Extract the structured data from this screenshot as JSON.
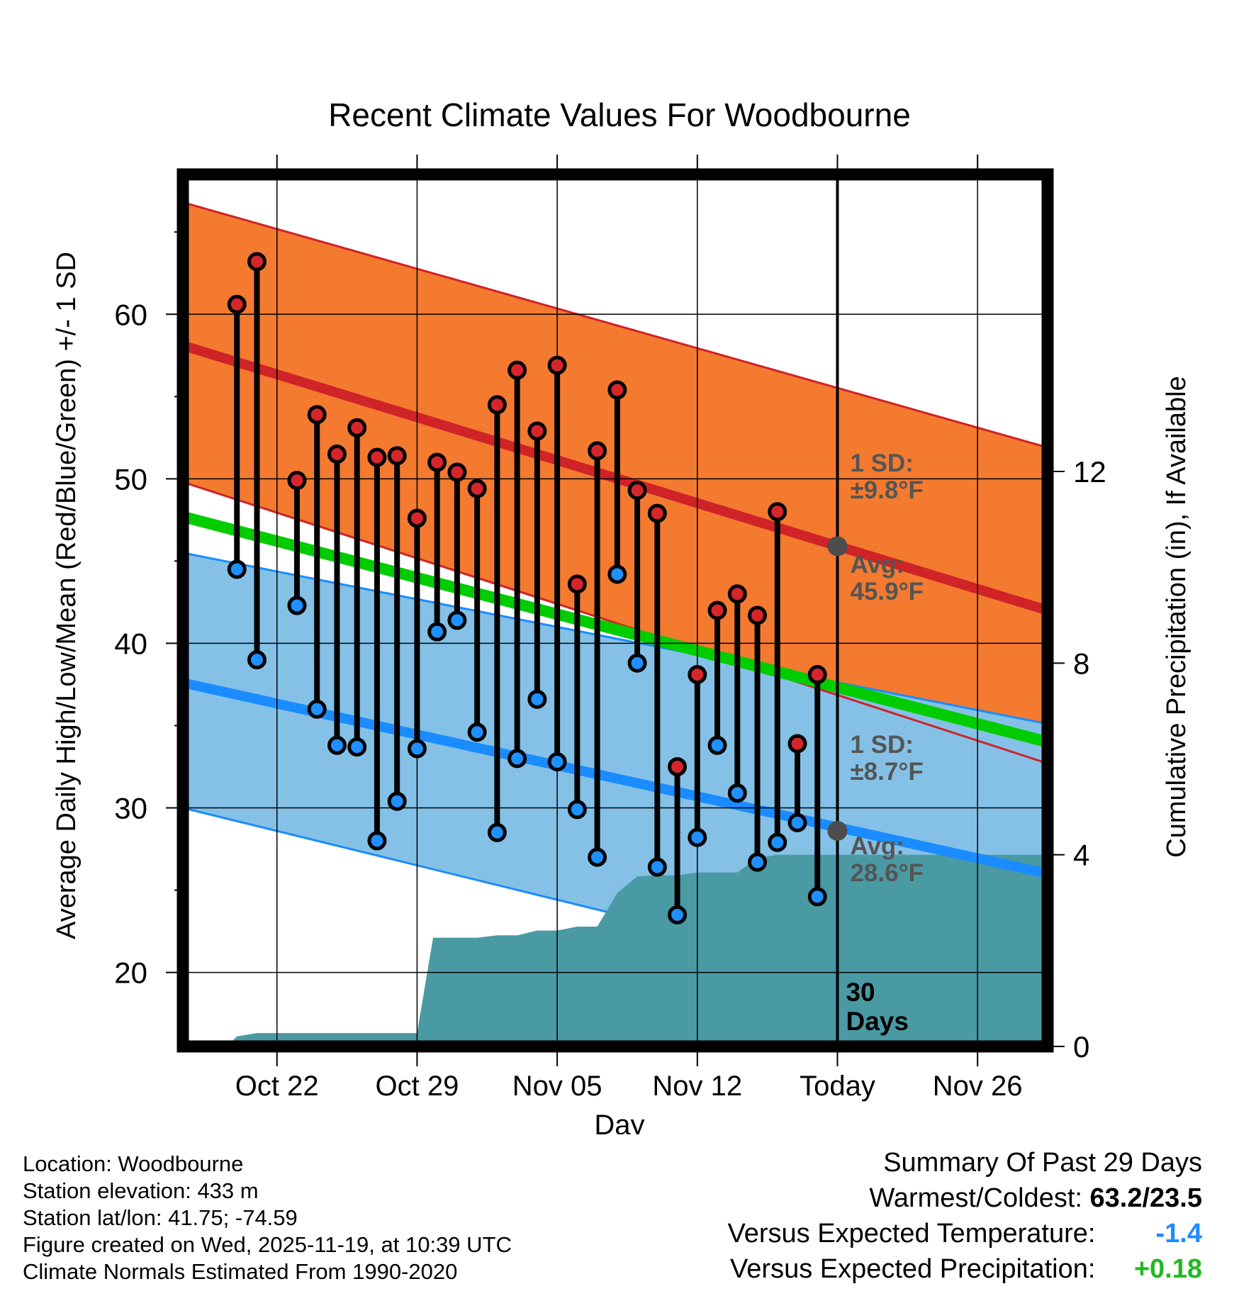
{
  "chart_data": {
    "type": "line",
    "title": "Recent Climate Values For Woodbourne",
    "xlabel": "Day",
    "ylabel": "Average Daily High/Low/Mean (Red/Blue/Green) +/- 1 SD",
    "y2label": "Cumulative Precipitation (in), If Available",
    "ylim": [
      15.5,
      68.5
    ],
    "y2lim": [
      0,
      18.2
    ],
    "yticks": [
      20,
      30,
      40,
      50,
      60
    ],
    "y2ticks": [
      0,
      4,
      8,
      12
    ],
    "x_range_days": [
      -32.7,
      10.5
    ],
    "xticks": [
      {
        "day": -28,
        "label": "Oct 22"
      },
      {
        "day": -21,
        "label": "Oct 29"
      },
      {
        "day": -14,
        "label": "Nov 05"
      },
      {
        "day": -7,
        "label": "Nov 12"
      },
      {
        "day": 0,
        "label": "Today"
      },
      {
        "day": 7,
        "label": "Nov 26"
      }
    ],
    "normals": {
      "high_avg": {
        "start": 58.1,
        "end": 42.0
      },
      "high_upper": {
        "start": 66.8,
        "end": 51.9
      },
      "high_lower": {
        "start": 49.8,
        "end": 32.7
      },
      "low_avg": {
        "start": 37.6,
        "end": 26.0
      },
      "low_upper": {
        "start": 45.5,
        "end": 35.1
      },
      "low_lower": {
        "start": 30.0,
        "end": 17.1
      },
      "mean_avg": {
        "start": 47.7,
        "end": 34.0
      }
    },
    "daily": {
      "days": [
        -30,
        -29,
        -27,
        -26,
        -25,
        -24,
        -23,
        -22,
        -21,
        -20,
        -19,
        -18,
        -17,
        -16,
        -15,
        -14,
        -13,
        -12,
        -11,
        -10,
        -9,
        -8,
        -7,
        -6,
        -5,
        -4,
        -3,
        -2,
        -1
      ],
      "highs": [
        60.6,
        63.2,
        49.9,
        53.9,
        51.5,
        53.1,
        51.3,
        51.4,
        47.6,
        51.0,
        50.4,
        49.4,
        54.5,
        56.6,
        52.9,
        56.9,
        43.6,
        51.7,
        55.4,
        49.3,
        47.9,
        32.5,
        38.1,
        42.0,
        43.0,
        41.7,
        48.0,
        33.9,
        38.1
      ],
      "lows": [
        44.5,
        39.0,
        42.3,
        36.0,
        33.8,
        33.7,
        28.0,
        30.4,
        33.6,
        40.7,
        41.4,
        34.6,
        28.5,
        33.0,
        36.6,
        32.8,
        29.9,
        27.0,
        44.2,
        38.8,
        26.4,
        23.5,
        28.2,
        33.8,
        30.9,
        26.7,
        27.9,
        29.1,
        24.6
      ]
    },
    "precip": {
      "days": [
        -30.5,
        -30,
        -29,
        -28,
        -27,
        -26,
        -25,
        -24,
        -23,
        -22,
        -21,
        -20.2,
        -20,
        -19,
        -18,
        -17,
        -16,
        -15,
        -14,
        -13,
        -12,
        -11,
        -10,
        -9,
        -8,
        -7,
        -6,
        -5,
        -4,
        -3,
        -2,
        -1,
        0,
        10.5
      ],
      "values": [
        0.0,
        0.21,
        0.28,
        0.28,
        0.28,
        0.28,
        0.28,
        0.28,
        0.28,
        0.28,
        0.28,
        2.27,
        2.27,
        2.27,
        2.27,
        2.32,
        2.32,
        2.42,
        2.42,
        2.5,
        2.5,
        3.2,
        3.55,
        3.57,
        3.57,
        3.63,
        3.63,
        3.63,
        3.93,
        4.0,
        4.0,
        4.0,
        4.0,
        4.0
      ]
    },
    "today_markers": [
      {
        "label": "high",
        "value": 45.9
      },
      {
        "label": "low",
        "value": 28.6
      }
    ],
    "annotations": {
      "high_sd": "1 SD:\n±9.8°F",
      "high_avg": "Avg:\n45.9°F",
      "low_sd": "1 SD:\n±8.7°F",
      "low_avg": "Avg:\n28.6°F",
      "window_line1": "30",
      "window_line2": "Days"
    },
    "colors": {
      "high_band": "#f47a30",
      "high_line": "#cf2328",
      "low_band": "#85c1e7",
      "low_line": "#1a8cff",
      "mean_line": "#00cc00",
      "precip": "#4a9aa4",
      "high_point": "#d7262b",
      "low_point": "#1e90ff",
      "today_marker": "#4d4d4d",
      "annotation": "#555555"
    }
  },
  "info": {
    "location": "Location: Woodbourne",
    "elevation": "Station elevation: 433 m",
    "latlon": "Station lat/lon: 41.75; -74.59",
    "created": "Figure created on Wed, 2025-11-19, at 10:39 UTC",
    "normals": "Climate Normals Estimated From 1990-2020"
  },
  "summary": {
    "title": "Summary Of Past 29 Days",
    "warm_label": "Warmest/Coldest:",
    "warm_value": "63.2/23.5",
    "temp_label": "Versus Expected Temperature:",
    "temp_value": "-1.4",
    "temp_color": "#1a8cff",
    "precip_label": "Versus Expected Precipitation:",
    "precip_value": "+0.18",
    "precip_color": "#22b822"
  }
}
